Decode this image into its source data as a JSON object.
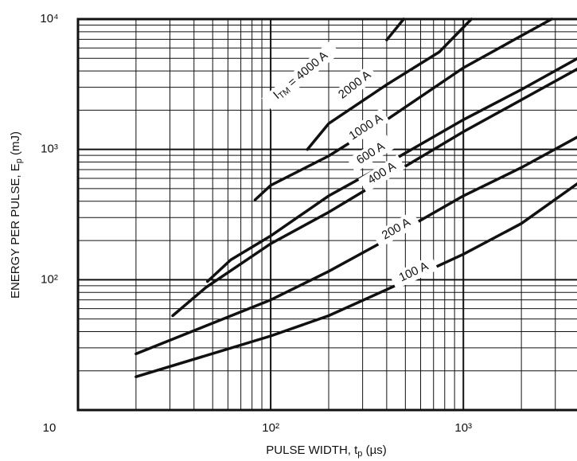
{
  "chart_data": {
    "type": "line",
    "log_x": true,
    "log_y": true,
    "grid": true,
    "xlim": [
      10,
      4000
    ],
    "ylim": [
      10,
      10000
    ],
    "xticks": [
      {
        "value": 10,
        "label": "10"
      },
      {
        "value": 100,
        "label": "10²"
      },
      {
        "value": 1000,
        "label": "10³"
      }
    ],
    "yticks": [
      {
        "value": 100,
        "label": "10²"
      },
      {
        "value": 1000,
        "label": "10³"
      },
      {
        "value": 10000,
        "label": "10⁴"
      }
    ],
    "xminorticks": [
      20,
      30,
      40,
      50,
      60,
      70,
      80,
      90,
      200,
      300,
      400,
      500,
      600,
      700,
      800,
      900,
      2000,
      3000,
      4000
    ],
    "yminorticks": [
      20,
      30,
      40,
      50,
      60,
      70,
      80,
      90,
      200,
      300,
      400,
      500,
      600,
      700,
      800,
      900,
      2000,
      3000,
      4000,
      5000,
      6000,
      7000,
      8000,
      9000
    ],
    "x_label": [
      "PULSE WIDTH, t",
      "p",
      " (µs)"
    ],
    "y_label": [
      "ENERGY PER PULSE, E",
      "p",
      " (mJ)"
    ],
    "annotation": [
      "I",
      "TM",
      " = "
    ],
    "series": [
      {
        "name": "100 A",
        "color": "#111111",
        "x": [
          20,
          100,
          200,
          400,
          1000,
          2000,
          4000
        ],
        "values": [
          18,
          37,
          53,
          84,
          157,
          270,
          560
        ]
      },
      {
        "name": "200 A",
        "color": "#111111",
        "x": [
          20,
          100,
          200,
          400,
          1000,
          2000,
          4000
        ],
        "values": [
          27,
          70,
          116,
          203,
          440,
          725,
          1270
        ]
      },
      {
        "name": "400 A",
        "color": "#111111",
        "x": [
          31,
          46,
          100,
          200,
          400,
          1000,
          2000,
          4000
        ],
        "values": [
          53,
          87,
          189,
          330,
          610,
          1365,
          2400,
          4230
        ]
      },
      {
        "name": "600 A",
        "color": "#111111",
        "x": [
          47,
          62,
          100,
          200,
          400,
          1000,
          2000,
          4000
        ],
        "values": [
          97,
          142,
          217,
          440,
          776,
          1690,
          2880,
          5080
        ]
      },
      {
        "name": "1000 A",
        "color": "#111111",
        "x": [
          83,
          100,
          200,
          400,
          1000,
          2000,
          2870
        ],
        "values": [
          410,
          530,
          890,
          1690,
          4230,
          7450,
          10000
        ]
      },
      {
        "name": "2000 A",
        "color": "#111111",
        "x": [
          155,
          200,
          400,
          750,
          1100
        ],
        "values": [
          1000,
          1580,
          3140,
          5600,
          10000
        ]
      },
      {
        "name": "4000 A",
        "color": "#111111",
        "x": [
          400,
          490
        ],
        "values": [
          6920,
          10000
        ]
      }
    ]
  }
}
